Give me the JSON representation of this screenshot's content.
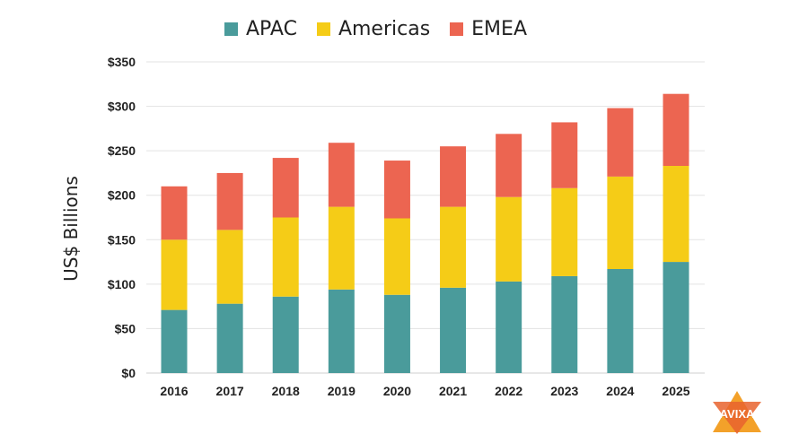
{
  "chart_data": {
    "type": "bar",
    "stacked": true,
    "categories": [
      "2016",
      "2017",
      "2018",
      "2019",
      "2020",
      "2021",
      "2022",
      "2023",
      "2024",
      "2025"
    ],
    "series": [
      {
        "name": "APAC",
        "color": "#4a9b9b",
        "values": [
          71,
          78,
          86,
          94,
          88,
          96,
          103,
          109,
          117,
          125
        ]
      },
      {
        "name": "Americas",
        "color": "#f5cc17",
        "values": [
          79,
          83,
          89,
          93,
          86,
          91,
          95,
          99,
          104,
          108
        ]
      },
      {
        "name": "EMEA",
        "color": "#ec6551",
        "values": [
          60,
          64,
          67,
          72,
          65,
          68,
          71,
          74,
          77,
          81
        ]
      }
    ],
    "ylabel": "US$ Billions",
    "xlabel": "",
    "ylim": [
      0,
      350
    ],
    "yticks": [
      "$0",
      "$50",
      "$100",
      "$150",
      "$200",
      "$250",
      "$300",
      "$350"
    ],
    "grid": true,
    "legend_position": "top-center"
  },
  "logo": {
    "text": "AVIXA"
  }
}
